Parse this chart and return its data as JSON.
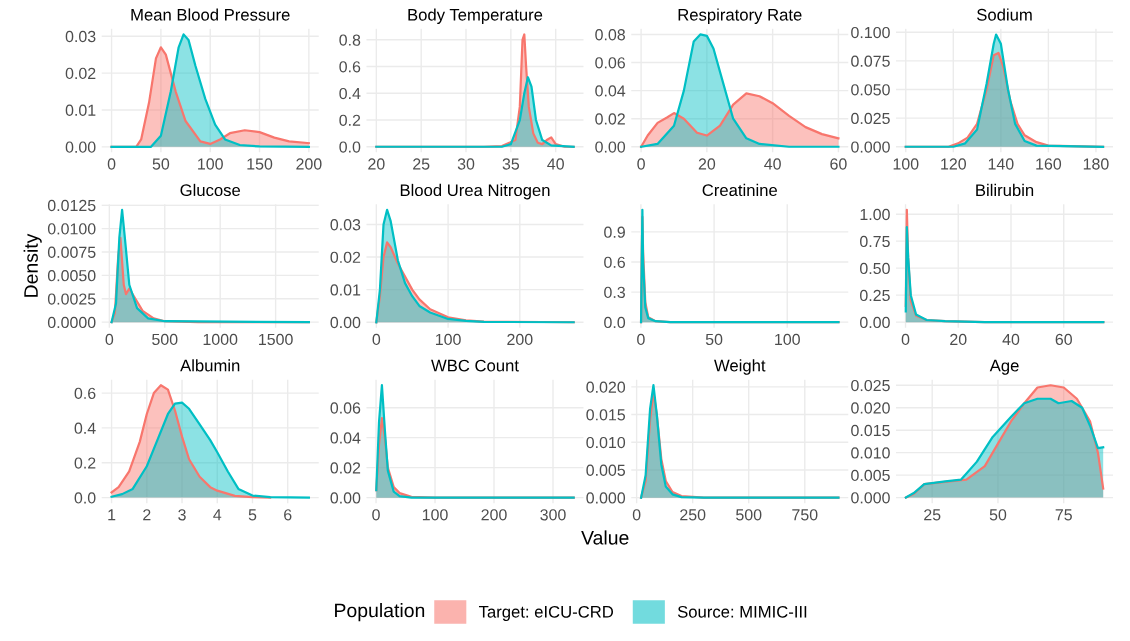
{
  "chart_data": [
    {
      "type": "area",
      "title": "Mean Blood Pressure",
      "legend": "bottom",
      "legend_title": "Population",
      "grid": true,
      "xlim": [
        -10,
        210
      ],
      "ylim": [
        -0.0015,
        0.032
      ],
      "xticks": [
        0,
        50,
        100,
        150,
        200
      ],
      "yticks": [
        {
          "value": 0,
          "label": "0.00"
        },
        {
          "value": 0.01,
          "label": "0.01"
        },
        {
          "value": 0.02,
          "label": "0.02"
        },
        {
          "value": 0.03,
          "label": "0.03"
        }
      ],
      "series": [
        {
          "name": "Target: eICU-CRD",
          "color": "#f8766d",
          "x": [
            0,
            25,
            30,
            38,
            45,
            50,
            55,
            65,
            75,
            90,
            100,
            110,
            120,
            135,
            150,
            165,
            180,
            200
          ],
          "values": [
            0,
            0,
            0.002,
            0.012,
            0.024,
            0.027,
            0.025,
            0.015,
            0.007,
            0.0015,
            0.0008,
            0.002,
            0.0037,
            0.0045,
            0.004,
            0.0025,
            0.0015,
            0.001
          ]
        },
        {
          "name": "Source: MIMIC-III",
          "color": "#00bfc4",
          "x": [
            0,
            40,
            50,
            60,
            68,
            73,
            78,
            85,
            95,
            105,
            115,
            130,
            150,
            200
          ],
          "values": [
            0,
            0,
            0.003,
            0.015,
            0.027,
            0.0305,
            0.029,
            0.022,
            0.013,
            0.006,
            0.002,
            0.0005,
            0.0001,
            0
          ]
        }
      ]
    },
    {
      "type": "area",
      "title": "Body Temperature",
      "grid": true,
      "xlim": [
        18.9,
        43.1
      ],
      "ylim": [
        -0.042,
        0.882
      ],
      "xticks": [
        20,
        25,
        30,
        35,
        40
      ],
      "yticks": [
        {
          "value": 0,
          "label": "0.0"
        },
        0.2,
        0.4,
        0.6,
        0.8
      ],
      "series": [
        {
          "name": "Target: eICU-CRD",
          "color": "#f8766d",
          "x": [
            20,
            32,
            34,
            35.5,
            36,
            36.3,
            36.5,
            36.7,
            37,
            37.5,
            38,
            38.5,
            39,
            39.5,
            40,
            41,
            42
          ],
          "values": [
            0,
            0,
            0.005,
            0.05,
            0.3,
            0.8,
            0.84,
            0.6,
            0.3,
            0.1,
            0.03,
            0.02,
            0.05,
            0.07,
            0.02,
            0,
            0
          ]
        },
        {
          "name": "Source: MIMIC-III",
          "color": "#00bfc4",
          "x": [
            20,
            34,
            35,
            36,
            36.5,
            36.9,
            37.3,
            37.8,
            38.5,
            39.5,
            42
          ],
          "values": [
            0,
            0,
            0.02,
            0.2,
            0.4,
            0.52,
            0.45,
            0.2,
            0.05,
            0.01,
            0
          ]
        }
      ]
    },
    {
      "type": "area",
      "title": "Respiratory Rate",
      "grid": true,
      "xlim": [
        -3,
        63
      ],
      "ylim": [
        -0.004,
        0.084
      ],
      "xticks": [
        0,
        20,
        40,
        60
      ],
      "yticks": [
        {
          "value": 0,
          "label": "0.00"
        },
        {
          "value": 0.02,
          "label": "0.02"
        },
        {
          "value": 0.04,
          "label": "0.04"
        },
        {
          "value": 0.06,
          "label": "0.06"
        },
        {
          "value": 0.08,
          "label": "0.08"
        }
      ],
      "series": [
        {
          "name": "Target: eICU-CRD",
          "color": "#f8766d",
          "x": [
            0,
            2,
            5,
            8,
            10,
            13,
            17,
            20,
            24,
            28,
            32,
            36,
            40,
            45,
            50,
            55,
            60
          ],
          "values": [
            0,
            0.008,
            0.017,
            0.021,
            0.024,
            0.02,
            0.01,
            0.008,
            0.015,
            0.03,
            0.038,
            0.036,
            0.031,
            0.022,
            0.014,
            0.009,
            0.006
          ]
        },
        {
          "name": "Source: MIMIC-III",
          "color": "#00bfc4",
          "x": [
            0,
            5,
            10,
            13,
            16,
            18,
            20,
            22,
            25,
            28,
            32,
            36,
            45,
            60
          ],
          "values": [
            0,
            0.002,
            0.015,
            0.04,
            0.075,
            0.08,
            0.079,
            0.07,
            0.045,
            0.02,
            0.006,
            0.002,
            0,
            0
          ]
        }
      ]
    },
    {
      "type": "area",
      "title": "Sodium",
      "grid": true,
      "xlim": [
        95.9,
        187.2
      ],
      "ylim": [
        -0.0049,
        0.103
      ],
      "xticks": [
        100,
        120,
        140,
        160,
        180
      ],
      "yticks": [
        {
          "value": 0,
          "label": "0.000"
        },
        {
          "value": 0.025,
          "label": "0.025"
        },
        {
          "value": 0.05,
          "label": "0.050"
        },
        {
          "value": 0.075,
          "label": "0.075"
        },
        {
          "value": 0.1,
          "label": "0.100"
        }
      ],
      "series": [
        {
          "name": "Target: eICU-CRD",
          "color": "#f8766d",
          "x": [
            100,
            118,
            122,
            126,
            130,
            134,
            137,
            139,
            141,
            144,
            147,
            150,
            155,
            160,
            183
          ],
          "values": [
            0,
            0,
            0.003,
            0.008,
            0.02,
            0.05,
            0.08,
            0.082,
            0.07,
            0.04,
            0.02,
            0.01,
            0.004,
            0.001,
            0
          ]
        },
        {
          "name": "Source: MIMIC-III",
          "color": "#00bfc4",
          "x": [
            100,
            120,
            125,
            130,
            134,
            137,
            138,
            140,
            143,
            146,
            150,
            155,
            183
          ],
          "values": [
            0,
            0,
            0.003,
            0.015,
            0.055,
            0.09,
            0.098,
            0.09,
            0.05,
            0.02,
            0.005,
            0.001,
            0
          ]
        }
      ]
    },
    {
      "type": "area",
      "title": "Glucose",
      "ylabel": "Density",
      "grid": true,
      "xlim": [
        -69,
        1889
      ],
      "ylim": [
        -0.0006,
        0.0126
      ],
      "xticks": [
        0,
        500,
        1000,
        1500
      ],
      "yticks": [
        {
          "value": 0,
          "label": "0.0000"
        },
        {
          "value": 0.0025,
          "label": "0.0025"
        },
        {
          "value": 0.005,
          "label": "0.0050"
        },
        {
          "value": 0.0075,
          "label": "0.0075"
        },
        {
          "value": 0.01,
          "label": "0.0100"
        },
        {
          "value": 0.0125,
          "label": "0.0125"
        }
      ],
      "series": [
        {
          "name": "Target: eICU-CRD",
          "color": "#f8766d",
          "x": [
            20,
            50,
            80,
            100,
            130,
            150,
            180,
            220,
            300,
            400,
            500,
            800,
            1800
          ],
          "values": [
            0,
            0.001,
            0.007,
            0.009,
            0.004,
            0.003,
            0.0036,
            0.0028,
            0.0012,
            0.0004,
            0.0001,
            0,
            0
          ]
        },
        {
          "name": "Source: MIMIC-III",
          "color": "#00bfc4",
          "x": [
            20,
            60,
            90,
            115,
            140,
            180,
            250,
            350,
            500,
            1800
          ],
          "values": [
            0,
            0.002,
            0.009,
            0.012,
            0.009,
            0.004,
            0.0015,
            0.0004,
            0.0001,
            0
          ]
        }
      ]
    },
    {
      "type": "area",
      "title": "Blood Urea Nitrogen",
      "grid": true,
      "xlim": [
        -13.75,
        288.75
      ],
      "ylim": [
        -0.0017,
        0.0362
      ],
      "xticks": [
        0,
        100,
        200
      ],
      "yticks": [
        {
          "value": 0,
          "label": "0.00"
        },
        {
          "value": 0.01,
          "label": "0.01"
        },
        {
          "value": 0.02,
          "label": "0.02"
        },
        {
          "value": 0.03,
          "label": "0.03"
        }
      ],
      "series": [
        {
          "name": "Target: eICU-CRD",
          "color": "#f8766d",
          "x": [
            0,
            5,
            10,
            15,
            20,
            30,
            40,
            50,
            60,
            75,
            100,
            125,
            150,
            275
          ],
          "values": [
            0,
            0.008,
            0.02,
            0.0245,
            0.023,
            0.018,
            0.014,
            0.01,
            0.007,
            0.004,
            0.0015,
            0.0006,
            0.0002,
            0
          ]
        },
        {
          "name": "Source: MIMIC-III",
          "color": "#00bfc4",
          "x": [
            0,
            5,
            10,
            15,
            20,
            30,
            40,
            50,
            60,
            75,
            100,
            125,
            150,
            275
          ],
          "values": [
            0,
            0.01,
            0.03,
            0.0345,
            0.031,
            0.019,
            0.012,
            0.008,
            0.005,
            0.003,
            0.001,
            0.0004,
            0.0001,
            0
          ]
        }
      ]
    },
    {
      "type": "area",
      "title": "Creatinine",
      "grid": true,
      "xlim": [
        -6.6,
        141.7
      ],
      "ylim": [
        -0.056,
        1.176
      ],
      "xticks": [
        0,
        50,
        100
      ],
      "yticks": [
        {
          "value": 0,
          "label": "0.0"
        },
        0.3,
        0.6,
        0.9
      ],
      "series": [
        {
          "name": "Target: eICU-CRD",
          "color": "#f8766d",
          "x": [
            0.1,
            0.5,
            1,
            1.5,
            3,
            5,
            10,
            20,
            135
          ],
          "values": [
            0,
            0.6,
            1.05,
            0.7,
            0.2,
            0.05,
            0.01,
            0,
            0
          ]
        },
        {
          "name": "Source: MIMIC-III",
          "color": "#00bfc4",
          "x": [
            0.1,
            0.5,
            1,
            1.5,
            3,
            5,
            10,
            20,
            135
          ],
          "values": [
            0,
            0.5,
            1.12,
            0.6,
            0.15,
            0.04,
            0.01,
            0,
            0
          ]
        }
      ]
    },
    {
      "type": "area",
      "title": "Bilirubin",
      "grid": true,
      "xlim": [
        -3.6,
        78.7
      ],
      "ylim": [
        -0.052,
        1.092
      ],
      "xticks": [
        0,
        20,
        40,
        60
      ],
      "yticks": [
        {
          "value": 0,
          "label": "0.00"
        },
        {
          "value": 0.25,
          "label": "0.25"
        },
        {
          "value": 0.5,
          "label": "0.50"
        },
        {
          "value": 0.75,
          "label": "0.75"
        },
        {
          "value": 1,
          "label": "1.00"
        }
      ],
      "series": [
        {
          "name": "Target: eICU-CRD",
          "color": "#f8766d",
          "x": [
            0.1,
            0.5,
            1,
            2,
            4,
            8,
            15,
            30,
            75
          ],
          "values": [
            0.15,
            1.04,
            0.6,
            0.2,
            0.06,
            0.02,
            0.01,
            0,
            0
          ]
        },
        {
          "name": "Source: MIMIC-III",
          "color": "#00bfc4",
          "x": [
            0.1,
            0.5,
            1,
            2,
            4,
            8,
            15,
            30,
            75
          ],
          "values": [
            0.1,
            0.88,
            0.6,
            0.25,
            0.07,
            0.02,
            0.01,
            0,
            0
          ]
        }
      ]
    },
    {
      "type": "area",
      "title": "Albumin",
      "grid": true,
      "xlim": [
        0.72,
        6.88
      ],
      "ylim": [
        -0.032,
        0.677
      ],
      "xticks": [
        1,
        2,
        3,
        4,
        5,
        6
      ],
      "yticks": [
        {
          "value": 0,
          "label": "0.0"
        },
        0.2,
        0.4,
        0.6
      ],
      "series": [
        {
          "name": "Target: eICU-CRD",
          "color": "#f8766d",
          "x": [
            1,
            1.2,
            1.5,
            1.8,
            2,
            2.2,
            2.4,
            2.6,
            2.8,
            3,
            3.2,
            3.5,
            3.8,
            4,
            4.5,
            5,
            5.5
          ],
          "values": [
            0.03,
            0.06,
            0.15,
            0.32,
            0.48,
            0.6,
            0.645,
            0.62,
            0.5,
            0.35,
            0.22,
            0.12,
            0.06,
            0.04,
            0.01,
            0.003,
            0
          ]
        },
        {
          "name": "Source: MIMIC-III",
          "color": "#00bfc4",
          "x": [
            1,
            1.3,
            1.6,
            2,
            2.3,
            2.6,
            2.8,
            3,
            3.2,
            3.5,
            3.8,
            4,
            4.3,
            4.6,
            5,
            5.5,
            6.6
          ],
          "values": [
            0.005,
            0.02,
            0.05,
            0.18,
            0.33,
            0.48,
            0.54,
            0.545,
            0.51,
            0.42,
            0.33,
            0.26,
            0.15,
            0.05,
            0.012,
            0.003,
            0
          ]
        }
      ]
    },
    {
      "type": "area",
      "title": "WBC Count",
      "grid": true,
      "xlim": [
        -16.2,
        351.7
      ],
      "ylim": [
        -0.0037,
        0.0787
      ],
      "xticks": [
        0,
        100,
        200,
        300
      ],
      "yticks": [
        {
          "value": 0,
          "label": "0.00"
        },
        {
          "value": 0.02,
          "label": "0.02"
        },
        {
          "value": 0.04,
          "label": "0.04"
        },
        {
          "value": 0.06,
          "label": "0.06"
        }
      ],
      "series": [
        {
          "name": "Target: eICU-CRD",
          "color": "#f8766d",
          "x": [
            0.5,
            5,
            10,
            15,
            20,
            30,
            40,
            60,
            100,
            335
          ],
          "values": [
            0.005,
            0.035,
            0.053,
            0.04,
            0.02,
            0.007,
            0.003,
            0.0005,
            0,
            0
          ]
        },
        {
          "name": "Source: MIMIC-III",
          "color": "#00bfc4",
          "x": [
            0.5,
            5,
            10,
            15,
            20,
            30,
            40,
            60,
            335
          ],
          "values": [
            0.005,
            0.05,
            0.075,
            0.045,
            0.018,
            0.004,
            0.001,
            0,
            0
          ]
        }
      ]
    },
    {
      "type": "area",
      "title": "Weight",
      "xlabel": "Value",
      "grid": true,
      "xlim": [
        -24,
        944
      ],
      "ylim": [
        -0.001,
        0.0213
      ],
      "xticks": [
        0,
        250,
        500,
        750
      ],
      "yticks": [
        {
          "value": 0,
          "label": "0.000"
        },
        {
          "value": 0.005,
          "label": "0.005"
        },
        {
          "value": 0.01,
          "label": "0.010"
        },
        {
          "value": 0.015,
          "label": "0.015"
        },
        {
          "value": 0.02,
          "label": "0.020"
        }
      ],
      "series": [
        {
          "name": "Target: eICU-CRD",
          "color": "#f8766d",
          "x": [
            20,
            40,
            60,
            75,
            90,
            110,
            130,
            160,
            200,
            300,
            900
          ],
          "values": [
            0,
            0.003,
            0.014,
            0.019,
            0.015,
            0.007,
            0.003,
            0.001,
            0.0003,
            0,
            0
          ]
        },
        {
          "name": "Source: MIMIC-III",
          "color": "#00bfc4",
          "x": [
            20,
            40,
            60,
            75,
            90,
            110,
            130,
            160,
            200,
            300,
            900
          ],
          "values": [
            0,
            0.004,
            0.016,
            0.0203,
            0.015,
            0.006,
            0.002,
            0.0006,
            0.0001,
            0,
            0
          ]
        }
      ]
    },
    {
      "type": "area",
      "title": "Age",
      "grid": true,
      "xlim": [
        11.25,
        93.75
      ],
      "ylim": [
        -0.00125,
        0.02625
      ],
      "xticks": [
        25,
        50,
        75
      ],
      "yticks": [
        {
          "value": 0,
          "label": "0.000"
        },
        {
          "value": 0.005,
          "label": "0.005"
        },
        {
          "value": 0.01,
          "label": "0.010"
        },
        {
          "value": 0.015,
          "label": "0.015"
        },
        {
          "value": 0.02,
          "label": "0.020"
        },
        {
          "value": 0.025,
          "label": "0.025"
        }
      ],
      "series": [
        {
          "name": "Target: eICU-CRD",
          "color": "#f8766d",
          "x": [
            15,
            18,
            22,
            30,
            38,
            45,
            50,
            55,
            60,
            65,
            70,
            75,
            80,
            85,
            88,
            90
          ],
          "values": [
            0,
            0.0008,
            0.003,
            0.0035,
            0.004,
            0.007,
            0.012,
            0.017,
            0.021,
            0.0245,
            0.025,
            0.0245,
            0.022,
            0.017,
            0.01,
            0.002
          ]
        },
        {
          "name": "Source: MIMIC-III",
          "color": "#00bfc4",
          "x": [
            15,
            18,
            22,
            30,
            36,
            42,
            48,
            55,
            60,
            65,
            70,
            73,
            78,
            82,
            85,
            88,
            90
          ],
          "values": [
            0,
            0.001,
            0.003,
            0.0036,
            0.004,
            0.008,
            0.0135,
            0.018,
            0.021,
            0.022,
            0.022,
            0.021,
            0.0215,
            0.02,
            0.016,
            0.011,
            0.0112
          ]
        }
      ]
    }
  ]
}
